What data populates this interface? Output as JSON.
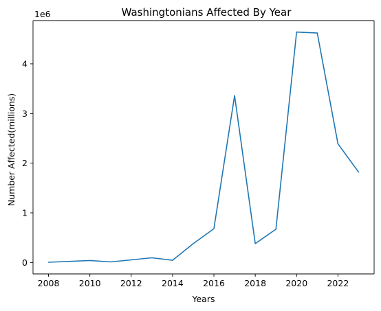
{
  "chart_data": {
    "type": "line",
    "title": "Washingtonians Affected By Year",
    "xlabel": "Years",
    "ylabel": "Number Affected(millions)",
    "offset_label": "1e6",
    "x": [
      2008,
      2010,
      2011,
      2013,
      2014,
      2015,
      2016,
      2017,
      2018,
      2019,
      2020,
      2021,
      2022,
      2023
    ],
    "series": [
      {
        "values": [
          5000,
          40000,
          12000,
          95000,
          45000,
          380000,
          680000,
          3360000,
          380000,
          670000,
          4640000,
          4620000,
          2390000,
          1820000
        ],
        "color": "#1f77b4"
      }
    ],
    "xlim": [
      2007.25,
      2023.75
    ],
    "ylim": [
      -230000,
      4870000
    ],
    "xticks": [
      2008,
      2010,
      2012,
      2014,
      2016,
      2018,
      2020,
      2022
    ],
    "yticks": [
      0,
      1000000,
      2000000,
      3000000,
      4000000
    ],
    "ytick_labels": [
      "0",
      "1",
      "2",
      "3",
      "4"
    ],
    "grid": false,
    "legend": "none"
  }
}
